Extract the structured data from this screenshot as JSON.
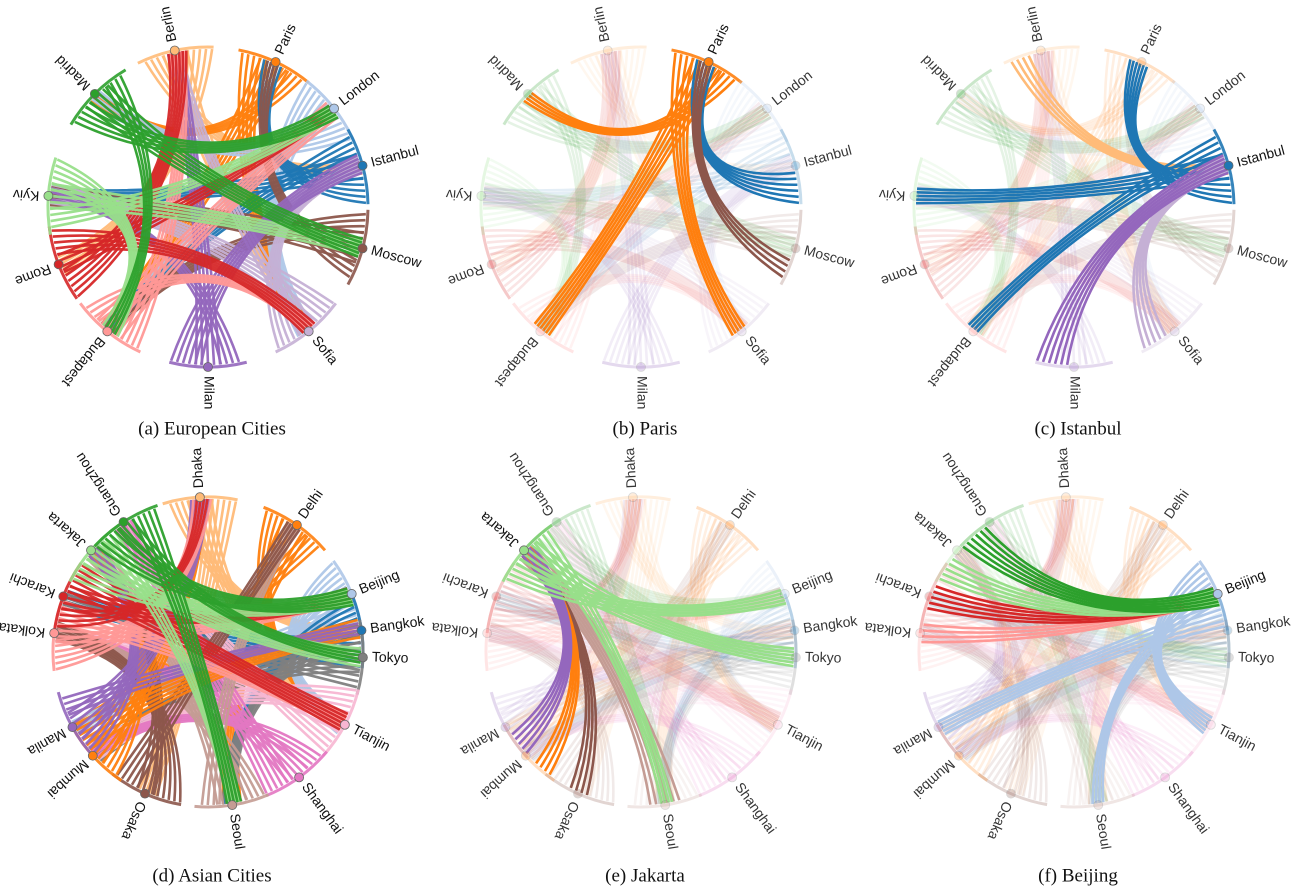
{
  "figure": {
    "panels": [
      {
        "caption": "(a) European Cities",
        "focus": null,
        "nodes": [
          {
            "label": "Berlin",
            "color": "#ffbb78"
          },
          {
            "label": "Paris",
            "color": "#ff7f0e"
          },
          {
            "label": "London",
            "color": "#aec7e8"
          },
          {
            "label": "Istanbul",
            "color": "#1f77b4"
          },
          {
            "label": "Moscow",
            "color": "#8c564b"
          },
          {
            "label": "Sofia",
            "color": "#c5b0d5"
          },
          {
            "label": "Milan",
            "color": "#9467bd"
          },
          {
            "label": "Budapest",
            "color": "#ff9896"
          },
          {
            "label": "Rome",
            "color": "#d62728"
          },
          {
            "label": "Kyiv",
            "color": "#98df8a"
          },
          {
            "label": "Madrid",
            "color": "#2ca02c"
          }
        ]
      },
      {
        "caption": "(b) Paris",
        "focus": 1,
        "nodes": [
          {
            "label": "Berlin",
            "color": "#ffbb78"
          },
          {
            "label": "Paris",
            "color": "#ff7f0e"
          },
          {
            "label": "London",
            "color": "#aec7e8"
          },
          {
            "label": "Istanbul",
            "color": "#1f77b4"
          },
          {
            "label": "Moscow",
            "color": "#8c564b"
          },
          {
            "label": "Sofia",
            "color": "#c5b0d5"
          },
          {
            "label": "Milan",
            "color": "#9467bd"
          },
          {
            "label": "Budapest",
            "color": "#ff9896"
          },
          {
            "label": "Rome",
            "color": "#d62728"
          },
          {
            "label": "Kyiv",
            "color": "#98df8a"
          },
          {
            "label": "Madrid",
            "color": "#2ca02c"
          }
        ]
      },
      {
        "caption": "(c) Istanbul",
        "focus": 3,
        "nodes": [
          {
            "label": "Berlin",
            "color": "#ffbb78"
          },
          {
            "label": "Paris",
            "color": "#ff7f0e"
          },
          {
            "label": "London",
            "color": "#aec7e8"
          },
          {
            "label": "Istanbul",
            "color": "#1f77b4"
          },
          {
            "label": "Moscow",
            "color": "#8c564b"
          },
          {
            "label": "Sofia",
            "color": "#c5b0d5"
          },
          {
            "label": "Milan",
            "color": "#9467bd"
          },
          {
            "label": "Budapest",
            "color": "#ff9896"
          },
          {
            "label": "Rome",
            "color": "#d62728"
          },
          {
            "label": "Kyiv",
            "color": "#98df8a"
          },
          {
            "label": "Madrid",
            "color": "#2ca02c"
          }
        ]
      },
      {
        "caption": "(d) Asian Cities",
        "focus": null,
        "nodes": [
          {
            "label": "Dhaka",
            "color": "#ffbb78"
          },
          {
            "label": "Delhi",
            "color": "#ff7f0e"
          },
          {
            "label": "Beijing",
            "color": "#aec7e8"
          },
          {
            "label": "Bangkok",
            "color": "#1f77b4"
          },
          {
            "label": "Tokyo",
            "color": "#7f7f7f"
          },
          {
            "label": "Tianjin",
            "color": "#f7b6d2"
          },
          {
            "label": "Shanghai",
            "color": "#e377c2"
          },
          {
            "label": "Seoul",
            "color": "#c49c94"
          },
          {
            "label": "Osaka",
            "color": "#8c564b"
          },
          {
            "label": "Mumbai",
            "color": "#ff7f0e"
          },
          {
            "label": "Manila",
            "color": "#9467bd"
          },
          {
            "label": "Kolkata",
            "color": "#ff9896"
          },
          {
            "label": "Karachi",
            "color": "#d62728"
          },
          {
            "label": "Jakarta",
            "color": "#98df8a"
          },
          {
            "label": "Guangzhou",
            "color": "#2ca02c"
          }
        ]
      },
      {
        "caption": "(e) Jakarta",
        "focus": 13,
        "nodes": [
          {
            "label": "Dhaka",
            "color": "#ffbb78"
          },
          {
            "label": "Delhi",
            "color": "#ff7f0e"
          },
          {
            "label": "Beijing",
            "color": "#aec7e8"
          },
          {
            "label": "Bangkok",
            "color": "#1f77b4"
          },
          {
            "label": "Tokyo",
            "color": "#7f7f7f"
          },
          {
            "label": "Tianjin",
            "color": "#f7b6d2"
          },
          {
            "label": "Shanghai",
            "color": "#e377c2"
          },
          {
            "label": "Seoul",
            "color": "#c49c94"
          },
          {
            "label": "Osaka",
            "color": "#8c564b"
          },
          {
            "label": "Mumbai",
            "color": "#ff7f0e"
          },
          {
            "label": "Manila",
            "color": "#9467bd"
          },
          {
            "label": "Kolkata",
            "color": "#ff9896"
          },
          {
            "label": "Karachi",
            "color": "#d62728"
          },
          {
            "label": "Jakarta",
            "color": "#98df8a"
          },
          {
            "label": "Guangzhou",
            "color": "#2ca02c"
          }
        ]
      },
      {
        "caption": "(f) Beijing",
        "focus": 2,
        "nodes": [
          {
            "label": "Dhaka",
            "color": "#ffbb78"
          },
          {
            "label": "Delhi",
            "color": "#ff7f0e"
          },
          {
            "label": "Beijing",
            "color": "#aec7e8"
          },
          {
            "label": "Bangkok",
            "color": "#1f77b4"
          },
          {
            "label": "Tokyo",
            "color": "#7f7f7f"
          },
          {
            "label": "Tianjin",
            "color": "#f7b6d2"
          },
          {
            "label": "Shanghai",
            "color": "#e377c2"
          },
          {
            "label": "Seoul",
            "color": "#c49c94"
          },
          {
            "label": "Osaka",
            "color": "#8c564b"
          },
          {
            "label": "Mumbai",
            "color": "#ff7f0e"
          },
          {
            "label": "Manila",
            "color": "#9467bd"
          },
          {
            "label": "Kolkata",
            "color": "#ff9896"
          },
          {
            "label": "Karachi",
            "color": "#d62728"
          },
          {
            "label": "Jakarta",
            "color": "#98df8a"
          },
          {
            "label": "Guangzhou",
            "color": "#2ca02c"
          }
        ]
      }
    ]
  }
}
